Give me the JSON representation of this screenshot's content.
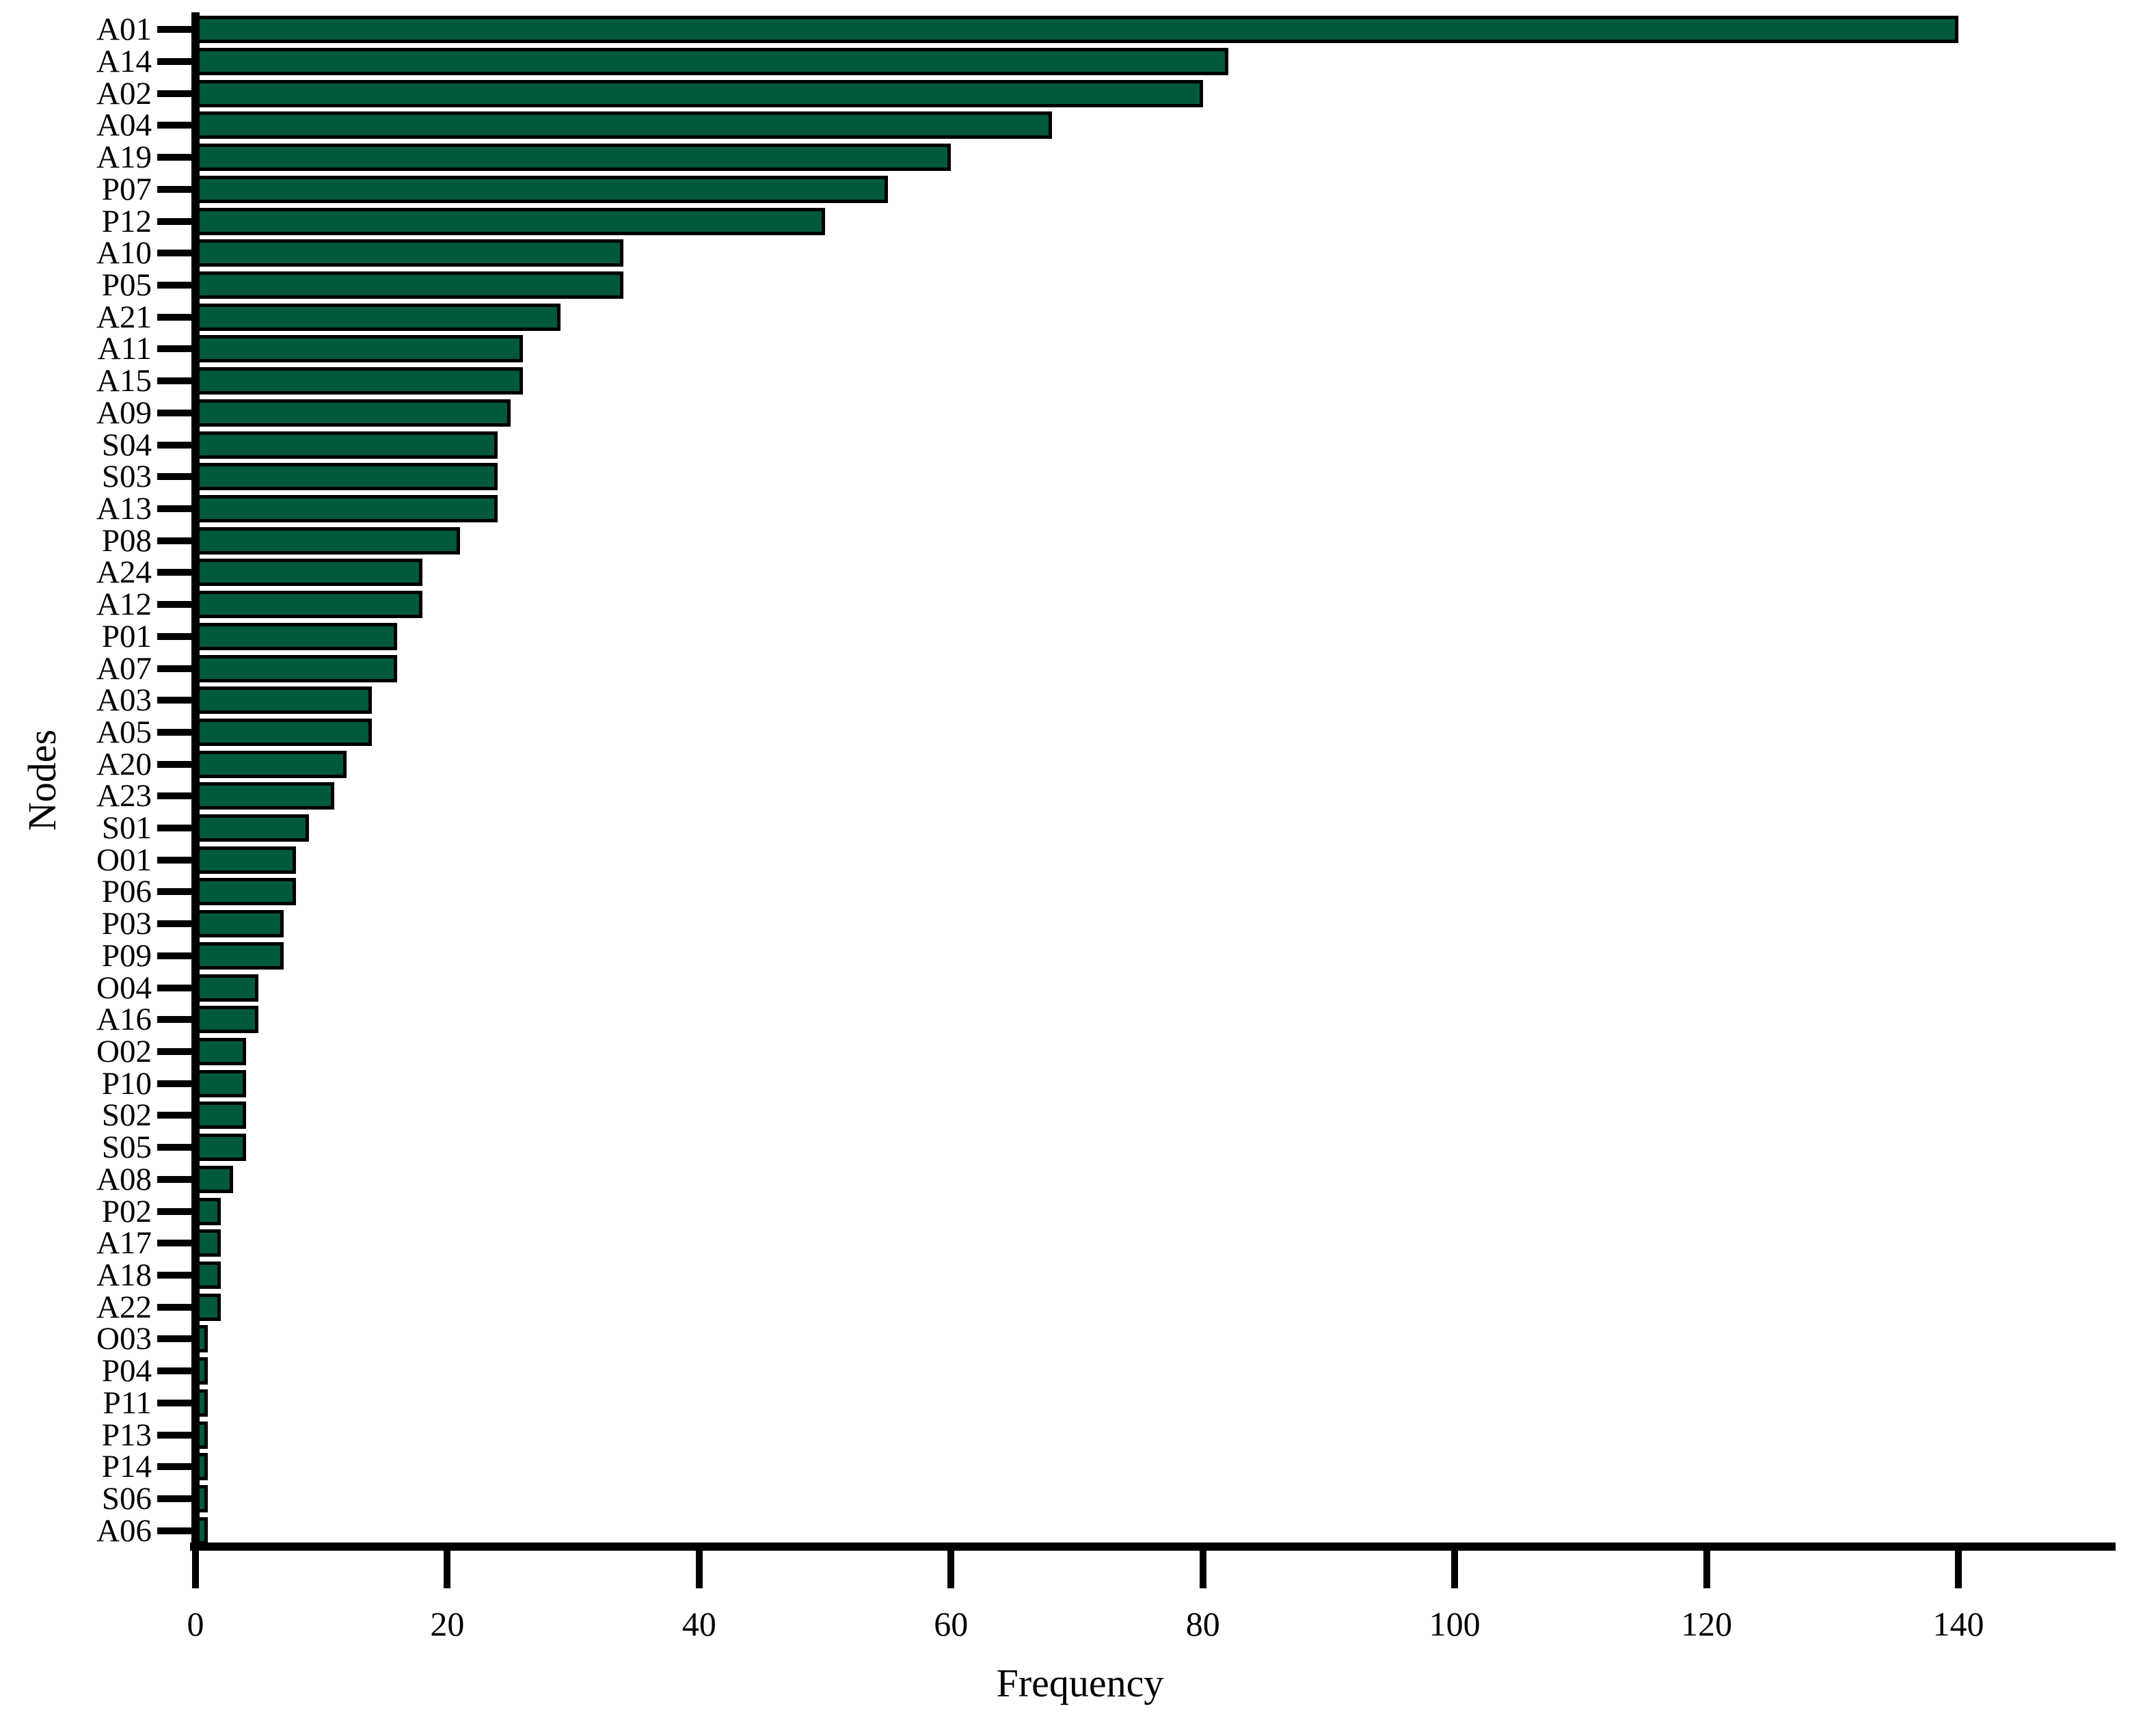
{
  "figure": {
    "background": "#ffffff"
  },
  "chart_data": {
    "type": "bar",
    "orientation": "horizontal",
    "title": "",
    "xlabel": "Frequency",
    "ylabel": "Nodes",
    "categories": [
      "A01",
      "A14",
      "A02",
      "A04",
      "A19",
      "P07",
      "P12",
      "A10",
      "P05",
      "A21",
      "A11",
      "A15",
      "A09",
      "S04",
      "S03",
      "A13",
      "P08",
      "A24",
      "A12",
      "P01",
      "A07",
      "A03",
      "A05",
      "A20",
      "A23",
      "S01",
      "O01",
      "P06",
      "P03",
      "P09",
      "O04",
      "A16",
      "O02",
      "P10",
      "S02",
      "S05",
      "A08",
      "P02",
      "A17",
      "A18",
      "A22",
      "O03",
      "P04",
      "P11",
      "P13",
      "P14",
      "S06",
      "A06"
    ],
    "values": [
      140,
      82,
      80,
      68,
      60,
      55,
      50,
      34,
      34,
      29,
      26,
      26,
      25,
      24,
      24,
      24,
      21,
      18,
      18,
      16,
      16,
      14,
      14,
      12,
      11,
      9,
      8,
      8,
      7,
      7,
      5,
      5,
      4,
      4,
      4,
      4,
      3,
      2,
      2,
      2,
      2,
      1,
      1,
      1,
      1,
      1,
      1,
      1
    ],
    "xticks": [
      0,
      20,
      40,
      60,
      80,
      100,
      120,
      140
    ],
    "xlim": [
      0,
      152
    ],
    "grid": false,
    "legend": null,
    "bar_color": "#005A3A",
    "bar_edge_color": "#000000",
    "text_color": "#000000"
  }
}
